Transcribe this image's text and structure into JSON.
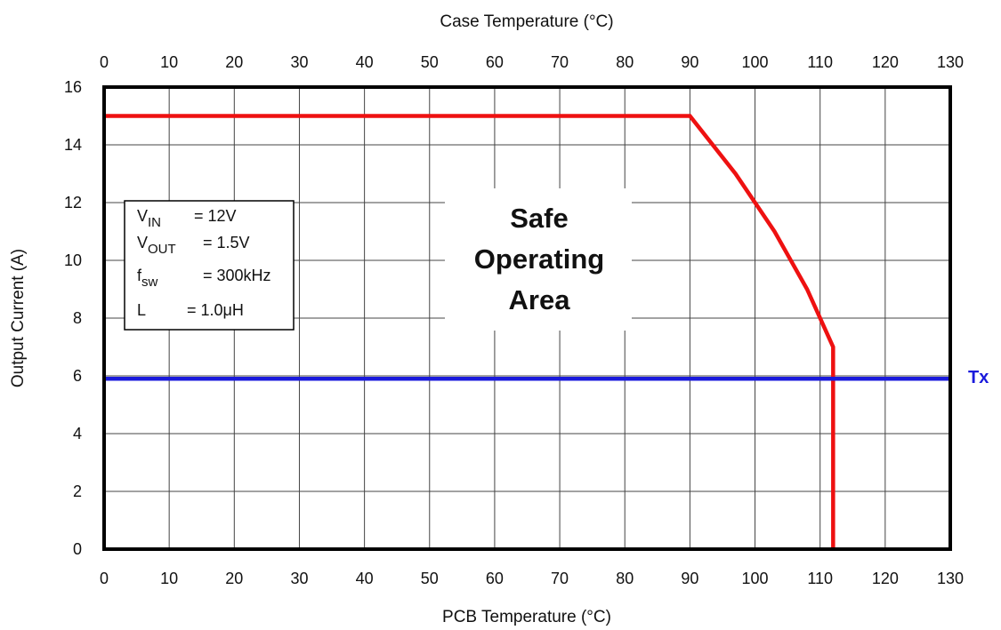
{
  "chart_data": {
    "type": "line",
    "title": "",
    "xlabel": "PCB Temperature (°C)",
    "x2label": "Case Temperature (°C)",
    "ylabel": "Output Current (A)",
    "xlim": [
      0,
      130
    ],
    "ylim": [
      0,
      16
    ],
    "x_ticks": [
      "0",
      "10",
      "20",
      "30",
      "40",
      "50",
      "60",
      "70",
      "80",
      "90",
      "100",
      "110",
      "120",
      "130"
    ],
    "x2_ticks": [
      "0",
      "10",
      "20",
      "30",
      "40",
      "50",
      "60",
      "70",
      "80",
      "90",
      "100",
      "110",
      "120",
      "130"
    ],
    "y_ticks": [
      "0",
      "2",
      "4",
      "6",
      "8",
      "10",
      "12",
      "14",
      "16"
    ],
    "grid": true,
    "series": [
      {
        "color": "#ee1111",
        "points": [
          [
            0,
            15
          ],
          [
            90,
            15
          ],
          [
            97,
            13
          ],
          [
            103,
            11
          ],
          [
            108,
            9
          ],
          [
            112,
            7
          ],
          [
            112,
            0
          ]
        ]
      },
      {
        "color": "#1a1adc",
        "points": [
          [
            0,
            5.9
          ],
          [
            130,
            5.9
          ]
        ]
      }
    ],
    "annotations": {
      "region_label": [
        "Safe",
        "Operating",
        "Area"
      ],
      "tx_label": "Tx",
      "params": [
        {
          "sym": "V",
          "sub": "IN",
          "value": "=    12V"
        },
        {
          "sym": "V",
          "sub": "OUT",
          "value": "=   1.5V"
        },
        {
          "sym": "f",
          "sub": "sw",
          "value": "=  300kHz"
        },
        {
          "sym": "L",
          "sub": "",
          "value": "= 1.0μH"
        }
      ]
    }
  }
}
